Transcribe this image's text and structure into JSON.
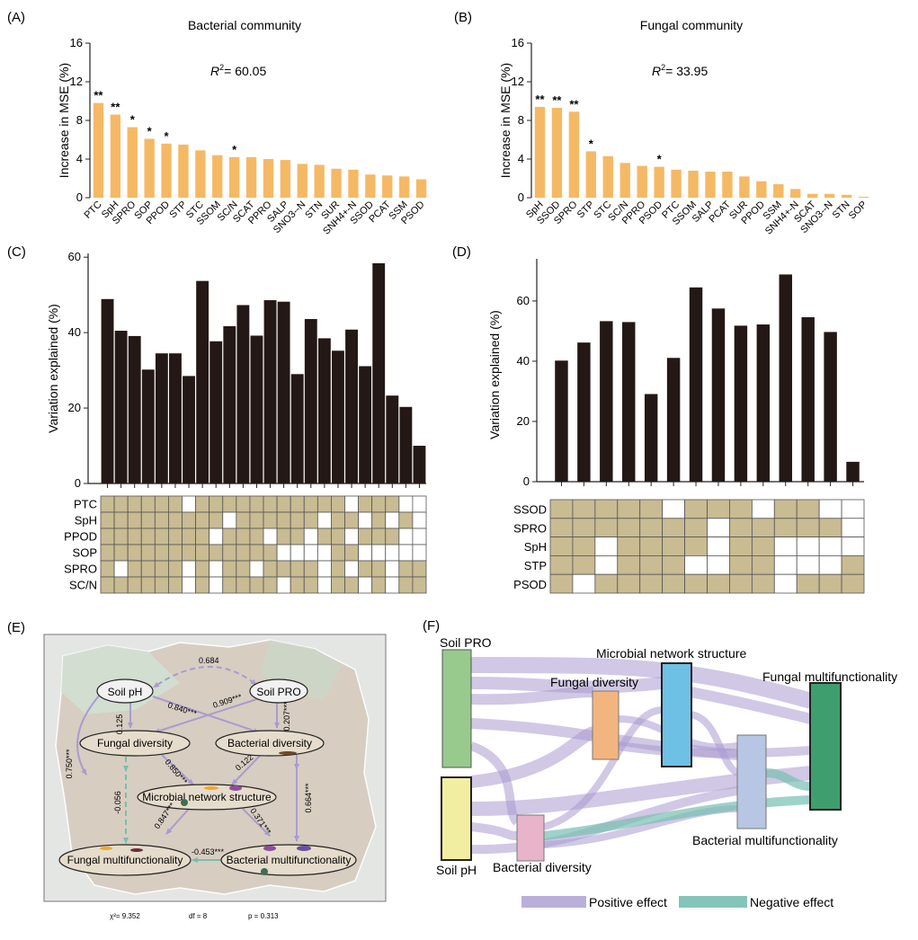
{
  "colors": {
    "bar_orange": "#F5B965",
    "bar_dark": "#231815",
    "cell_on": "#C9BB92",
    "cell_off": "#FFFFFF",
    "positive": "#A99BD0",
    "negative": "#76BFB0",
    "map_bg": "#E4E6E4",
    "node_soil_pro": "#98C98D",
    "node_soil_ph": "#F2EEA1",
    "node_bact_div": "#E8B4C9",
    "node_fung_div": "#F3B57F",
    "node_network": "#6EC1E4",
    "node_bact_mf": "#B7C6E2",
    "node_fung_mf": "#3E9E6E"
  },
  "chart_data": [
    {
      "id": "A",
      "type": "bar",
      "panel_label": "(A)",
      "title": "Bacterial community",
      "annotation_r2": "= 60.05",
      "r2_symbol": "R",
      "r2_sup": "2",
      "ylabel": "Increase in MSE (%)",
      "xlabel": "",
      "ylim": [
        0,
        16
      ],
      "yticks": [
        "0",
        "4",
        "8",
        "12",
        "16"
      ],
      "categories": [
        "PTC",
        "SpH",
        "SPRO",
        "SOP",
        "PPOD",
        "STP",
        "STC",
        "SSOM",
        "SC/N",
        "SCAT",
        "PPRO",
        "SALP",
        "SNO3--N",
        "STN",
        "SUR",
        "SNH4+-N",
        "SSOD",
        "PCAT",
        "SSM",
        "PSOD"
      ],
      "values": [
        9.8,
        8.6,
        7.3,
        6.1,
        5.6,
        5.5,
        4.9,
        4.4,
        4.2,
        4.2,
        4.0,
        3.9,
        3.5,
        3.4,
        3.0,
        2.9,
        2.4,
        2.3,
        2.2,
        1.9
      ],
      "significance": [
        "**",
        "**",
        "*",
        "*",
        "*",
        "",
        "",
        "",
        "*",
        "",
        "",
        "",
        "",
        "",
        "",
        "",
        "",
        "",
        "",
        ""
      ]
    },
    {
      "id": "B",
      "type": "bar",
      "panel_label": "(B)",
      "title": "Fungal community",
      "annotation_r2": "= 33.95",
      "r2_symbol": "R",
      "r2_sup": "2",
      "ylabel": "Increase in MSE (%)",
      "xlabel": "",
      "ylim": [
        0,
        16
      ],
      "yticks": [
        "0",
        "4",
        "8",
        "12",
        "16"
      ],
      "categories": [
        "SpH",
        "SSOD",
        "SPRO",
        "STP",
        "STC",
        "SC/N",
        "PPRO",
        "PSOD",
        "PTC",
        "SSOM",
        "SALP",
        "PCAT",
        "SUR",
        "PPOD",
        "SSM",
        "SNH4+-N",
        "SCAT",
        "SNO3--N",
        "STN",
        "SOP"
      ],
      "values": [
        9.4,
        9.3,
        8.9,
        4.8,
        4.3,
        3.6,
        3.3,
        3.2,
        2.9,
        2.8,
        2.7,
        2.7,
        2.2,
        1.7,
        1.4,
        0.9,
        0.4,
        0.4,
        0.3,
        0.1
      ],
      "significance": [
        "**",
        "**",
        "**",
        "*",
        "",
        "",
        "",
        "*",
        "",
        "",
        "",
        "",
        "",
        "",
        "",
        "",
        "",
        "",
        "",
        ""
      ]
    },
    {
      "id": "C",
      "type": "bar",
      "panel_label": "(C)",
      "ylabel": "Variation explained (%)",
      "xlabel": "",
      "ylim": [
        0,
        61
      ],
      "yticks": [
        "0",
        "20",
        "40",
        "60"
      ],
      "values": [
        48.9,
        40.5,
        39.1,
        30.2,
        34.5,
        34.5,
        28.5,
        53.7,
        37.7,
        41.7,
        47.3,
        39.2,
        48.6,
        48.2,
        29.0,
        43.6,
        38.5,
        35.2,
        40.8,
        31.1,
        58.4,
        23.3,
        20.3,
        10.0
      ],
      "matrix_rows": [
        "PTC",
        "SpH",
        "PPOD",
        "SOP",
        "SPRO",
        "SC/N"
      ],
      "matrix": [
        [
          1,
          1,
          1,
          1,
          1,
          1,
          0,
          1,
          1,
          1,
          1,
          1,
          1,
          1,
          1,
          1,
          1,
          1,
          0,
          1,
          1,
          1,
          0,
          0
        ],
        [
          1,
          1,
          1,
          1,
          1,
          1,
          1,
          1,
          1,
          0,
          1,
          1,
          1,
          1,
          1,
          1,
          0,
          1,
          1,
          0,
          1,
          0,
          1,
          0
        ],
        [
          1,
          1,
          1,
          1,
          1,
          1,
          1,
          1,
          0,
          1,
          1,
          1,
          0,
          1,
          1,
          0,
          1,
          1,
          0,
          1,
          1,
          1,
          0,
          0
        ],
        [
          1,
          1,
          1,
          1,
          1,
          1,
          1,
          1,
          1,
          1,
          1,
          1,
          1,
          0,
          0,
          0,
          0,
          1,
          1,
          0,
          0,
          0,
          0,
          0
        ],
        [
          1,
          0,
          1,
          1,
          1,
          1,
          0,
          1,
          0,
          1,
          1,
          0,
          1,
          1,
          1,
          1,
          0,
          1,
          0,
          1,
          1,
          0,
          1,
          1
        ],
        [
          1,
          1,
          1,
          1,
          1,
          1,
          0,
          1,
          0,
          1,
          1,
          1,
          1,
          0,
          1,
          1,
          0,
          1,
          1,
          0,
          1,
          0,
          1,
          1
        ]
      ]
    },
    {
      "id": "D",
      "type": "bar",
      "panel_label": "(D)",
      "ylabel": "Variation explained (%)",
      "xlabel": "",
      "ylim": [
        0,
        74
      ],
      "yticks": [
        "0",
        "20",
        "40",
        "60"
      ],
      "values": [
        40.2,
        46.2,
        53.3,
        53.0,
        29.1,
        41.1,
        64.5,
        57.5,
        51.8,
        52.2,
        68.8,
        54.6,
        49.7,
        6.6
      ],
      "matrix_rows": [
        "SSOD",
        "SPRO",
        "SpH",
        "STP",
        "PSOD"
      ],
      "matrix": [
        [
          1,
          1,
          1,
          1,
          1,
          0,
          1,
          1,
          1,
          0,
          1,
          1,
          0,
          0
        ],
        [
          1,
          1,
          1,
          1,
          1,
          1,
          1,
          0,
          1,
          1,
          1,
          1,
          1,
          0
        ],
        [
          1,
          1,
          0,
          1,
          1,
          1,
          1,
          0,
          1,
          1,
          0,
          0,
          0,
          0
        ],
        [
          1,
          1,
          0,
          1,
          1,
          1,
          0,
          0,
          1,
          1,
          0,
          0,
          0,
          1
        ],
        [
          1,
          0,
          1,
          1,
          1,
          1,
          1,
          1,
          1,
          1,
          0,
          1,
          1,
          1
        ]
      ]
    }
  ],
  "panel_e": {
    "label": "(E)",
    "nodes": {
      "soil_ph": "Soil pH",
      "soil_pro": "Soil PRO",
      "fungal_div": "Fungal diversity",
      "bacterial_div": "Bacterial diversity",
      "network": "Microbial network structure",
      "fungal_mf": "Fungal multifunctionality",
      "bacterial_mf": "Bacterial multifunctionality"
    },
    "path_coefficients": {
      "ph_pro": "0.684",
      "ph_fdiv": "0.125",
      "ph_bdiv": "0.840***",
      "pro_fdiv": "0.909***",
      "pro_bdiv": "0.207***",
      "ph_fmf": "0.750***",
      "fdiv_net": "0.850***",
      "bdiv_net": "0.122",
      "fdiv_fmf": "-0.056",
      "bdiv_bmf": "0.664***",
      "net_fmf": "0.847***",
      "net_bmf": "0.371***",
      "bmf_fmf": "-0.453***"
    },
    "fit": {
      "chi": "χ²= 9.352",
      "df": "df = 8",
      "p": "p = 0.313"
    }
  },
  "panel_f": {
    "label": "(F)",
    "nodes": {
      "soil_pro": "Soil PRO",
      "soil_ph": "Soil pH",
      "bacterial_div": "Bacterial diversity",
      "fungal_div": "Fungal  diversity",
      "network": "Microbial network structure",
      "bacterial_mf": "Bacterial  multifunctionality",
      "fungal_mf": "Fungal  multifunctionality"
    },
    "legend": {
      "positive": "Positive effect",
      "negative": "Negative effect"
    }
  }
}
